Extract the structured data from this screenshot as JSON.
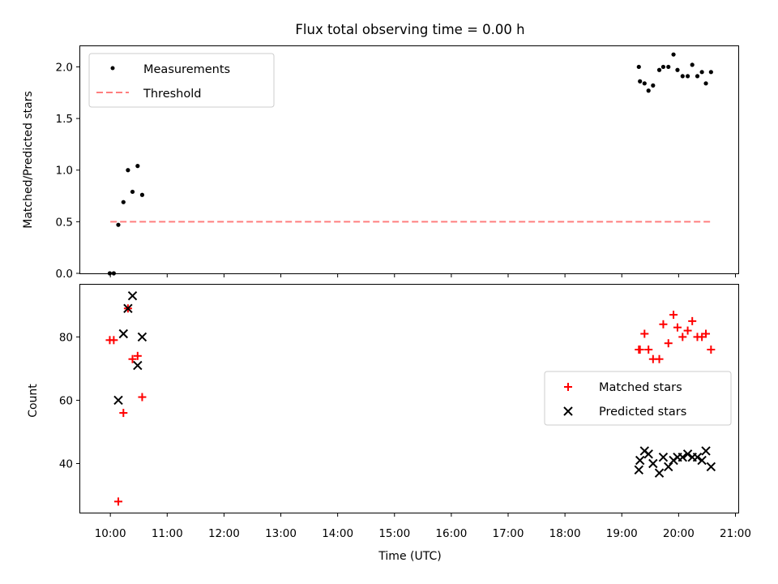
{
  "chart_data": {
    "type": "scatter",
    "title": "Flux total observing time = 0.00 h",
    "xlabel": "Time (UTC)",
    "x_ticks": [
      "10:00",
      "11:00",
      "12:00",
      "13:00",
      "14:00",
      "15:00",
      "16:00",
      "17:00",
      "18:00",
      "19:00",
      "20:00",
      "21:00"
    ],
    "x_tick_values": [
      10,
      11,
      12,
      13,
      14,
      15,
      16,
      17,
      18,
      19,
      20,
      21
    ],
    "x_range": [
      9.47,
      21.05
    ],
    "top": {
      "ylabel": "Matched/Predicted stars",
      "ylim": [
        0,
        2.2
      ],
      "y_ticks": [
        "0.0",
        "0.5",
        "1.0",
        "1.5",
        "2.0"
      ],
      "y_tick_values": [
        0,
        0.5,
        1.0,
        1.5,
        2.0
      ],
      "legend": [
        "Measurements",
        "Threshold"
      ],
      "legend_position": "upper-left",
      "colors": {
        "measurements": "#000000",
        "threshold": "#ff7f7f"
      },
      "threshold": {
        "value": 0.5,
        "x_start": 10.0,
        "x_end": 20.57
      },
      "measurements": [
        {
          "x": 9.99,
          "y": 0.0
        },
        {
          "x": 10.06,
          "y": 0.0
        },
        {
          "x": 10.14,
          "y": 0.47
        },
        {
          "x": 10.23,
          "y": 0.69
        },
        {
          "x": 10.31,
          "y": 1.0
        },
        {
          "x": 10.39,
          "y": 0.79
        },
        {
          "x": 10.48,
          "y": 1.04
        },
        {
          "x": 10.56,
          "y": 0.76
        },
        {
          "x": 19.3,
          "y": 2.0
        },
        {
          "x": 19.32,
          "y": 1.86
        },
        {
          "x": 19.4,
          "y": 1.84
        },
        {
          "x": 19.47,
          "y": 1.77
        },
        {
          "x": 19.55,
          "y": 1.82
        },
        {
          "x": 19.66,
          "y": 1.97
        },
        {
          "x": 19.73,
          "y": 2.0
        },
        {
          "x": 19.82,
          "y": 2.0
        },
        {
          "x": 19.91,
          "y": 2.12
        },
        {
          "x": 19.98,
          "y": 1.97
        },
        {
          "x": 20.07,
          "y": 1.91
        },
        {
          "x": 20.16,
          "y": 1.91
        },
        {
          "x": 20.24,
          "y": 2.02
        },
        {
          "x": 20.33,
          "y": 1.91
        },
        {
          "x": 20.41,
          "y": 1.95
        },
        {
          "x": 20.48,
          "y": 1.84
        },
        {
          "x": 20.57,
          "y": 1.95
        }
      ]
    },
    "bottom": {
      "ylabel": "Count",
      "ylim": [
        24.5,
        96.5
      ],
      "y_ticks": [
        "40",
        "60",
        "80"
      ],
      "y_tick_values": [
        40,
        60,
        80
      ],
      "legend": [
        "Matched stars",
        "Predicted stars"
      ],
      "legend_position": "center-right",
      "colors": {
        "matched": "#ff0000",
        "predicted": "#000000"
      },
      "series": [
        {
          "name": "Matched stars",
          "marker": "plus",
          "points": [
            {
              "x": 9.99,
              "y": 79
            },
            {
              "x": 10.06,
              "y": 79
            },
            {
              "x": 10.14,
              "y": 28
            },
            {
              "x": 10.23,
              "y": 56
            },
            {
              "x": 10.31,
              "y": 89
            },
            {
              "x": 10.39,
              "y": 73
            },
            {
              "x": 10.48,
              "y": 74
            },
            {
              "x": 10.56,
              "y": 61
            },
            {
              "x": 19.3,
              "y": 76
            },
            {
              "x": 19.32,
              "y": 76
            },
            {
              "x": 19.4,
              "y": 81
            },
            {
              "x": 19.47,
              "y": 76
            },
            {
              "x": 19.55,
              "y": 73
            },
            {
              "x": 19.66,
              "y": 73
            },
            {
              "x": 19.73,
              "y": 84
            },
            {
              "x": 19.82,
              "y": 78
            },
            {
              "x": 19.91,
              "y": 87
            },
            {
              "x": 19.98,
              "y": 83
            },
            {
              "x": 20.07,
              "y": 80
            },
            {
              "x": 20.16,
              "y": 82
            },
            {
              "x": 20.24,
              "y": 85
            },
            {
              "x": 20.33,
              "y": 80
            },
            {
              "x": 20.41,
              "y": 80
            },
            {
              "x": 20.48,
              "y": 81
            },
            {
              "x": 20.57,
              "y": 76
            }
          ]
        },
        {
          "name": "Predicted stars",
          "marker": "x",
          "points": [
            {
              "x": 10.14,
              "y": 60
            },
            {
              "x": 10.23,
              "y": 81
            },
            {
              "x": 10.31,
              "y": 89
            },
            {
              "x": 10.39,
              "y": 93
            },
            {
              "x": 10.48,
              "y": 71
            },
            {
              "x": 10.56,
              "y": 80
            },
            {
              "x": 19.3,
              "y": 38
            },
            {
              "x": 19.32,
              "y": 41
            },
            {
              "x": 19.4,
              "y": 44
            },
            {
              "x": 19.47,
              "y": 43
            },
            {
              "x": 19.55,
              "y": 40
            },
            {
              "x": 19.66,
              "y": 37
            },
            {
              "x": 19.73,
              "y": 42
            },
            {
              "x": 19.82,
              "y": 39
            },
            {
              "x": 19.91,
              "y": 41
            },
            {
              "x": 19.98,
              "y": 42
            },
            {
              "x": 20.07,
              "y": 42
            },
            {
              "x": 20.16,
              "y": 43
            },
            {
              "x": 20.24,
              "y": 42
            },
            {
              "x": 20.33,
              "y": 42
            },
            {
              "x": 20.41,
              "y": 41
            },
            {
              "x": 20.48,
              "y": 44
            },
            {
              "x": 20.57,
              "y": 39
            }
          ]
        }
      ]
    }
  }
}
